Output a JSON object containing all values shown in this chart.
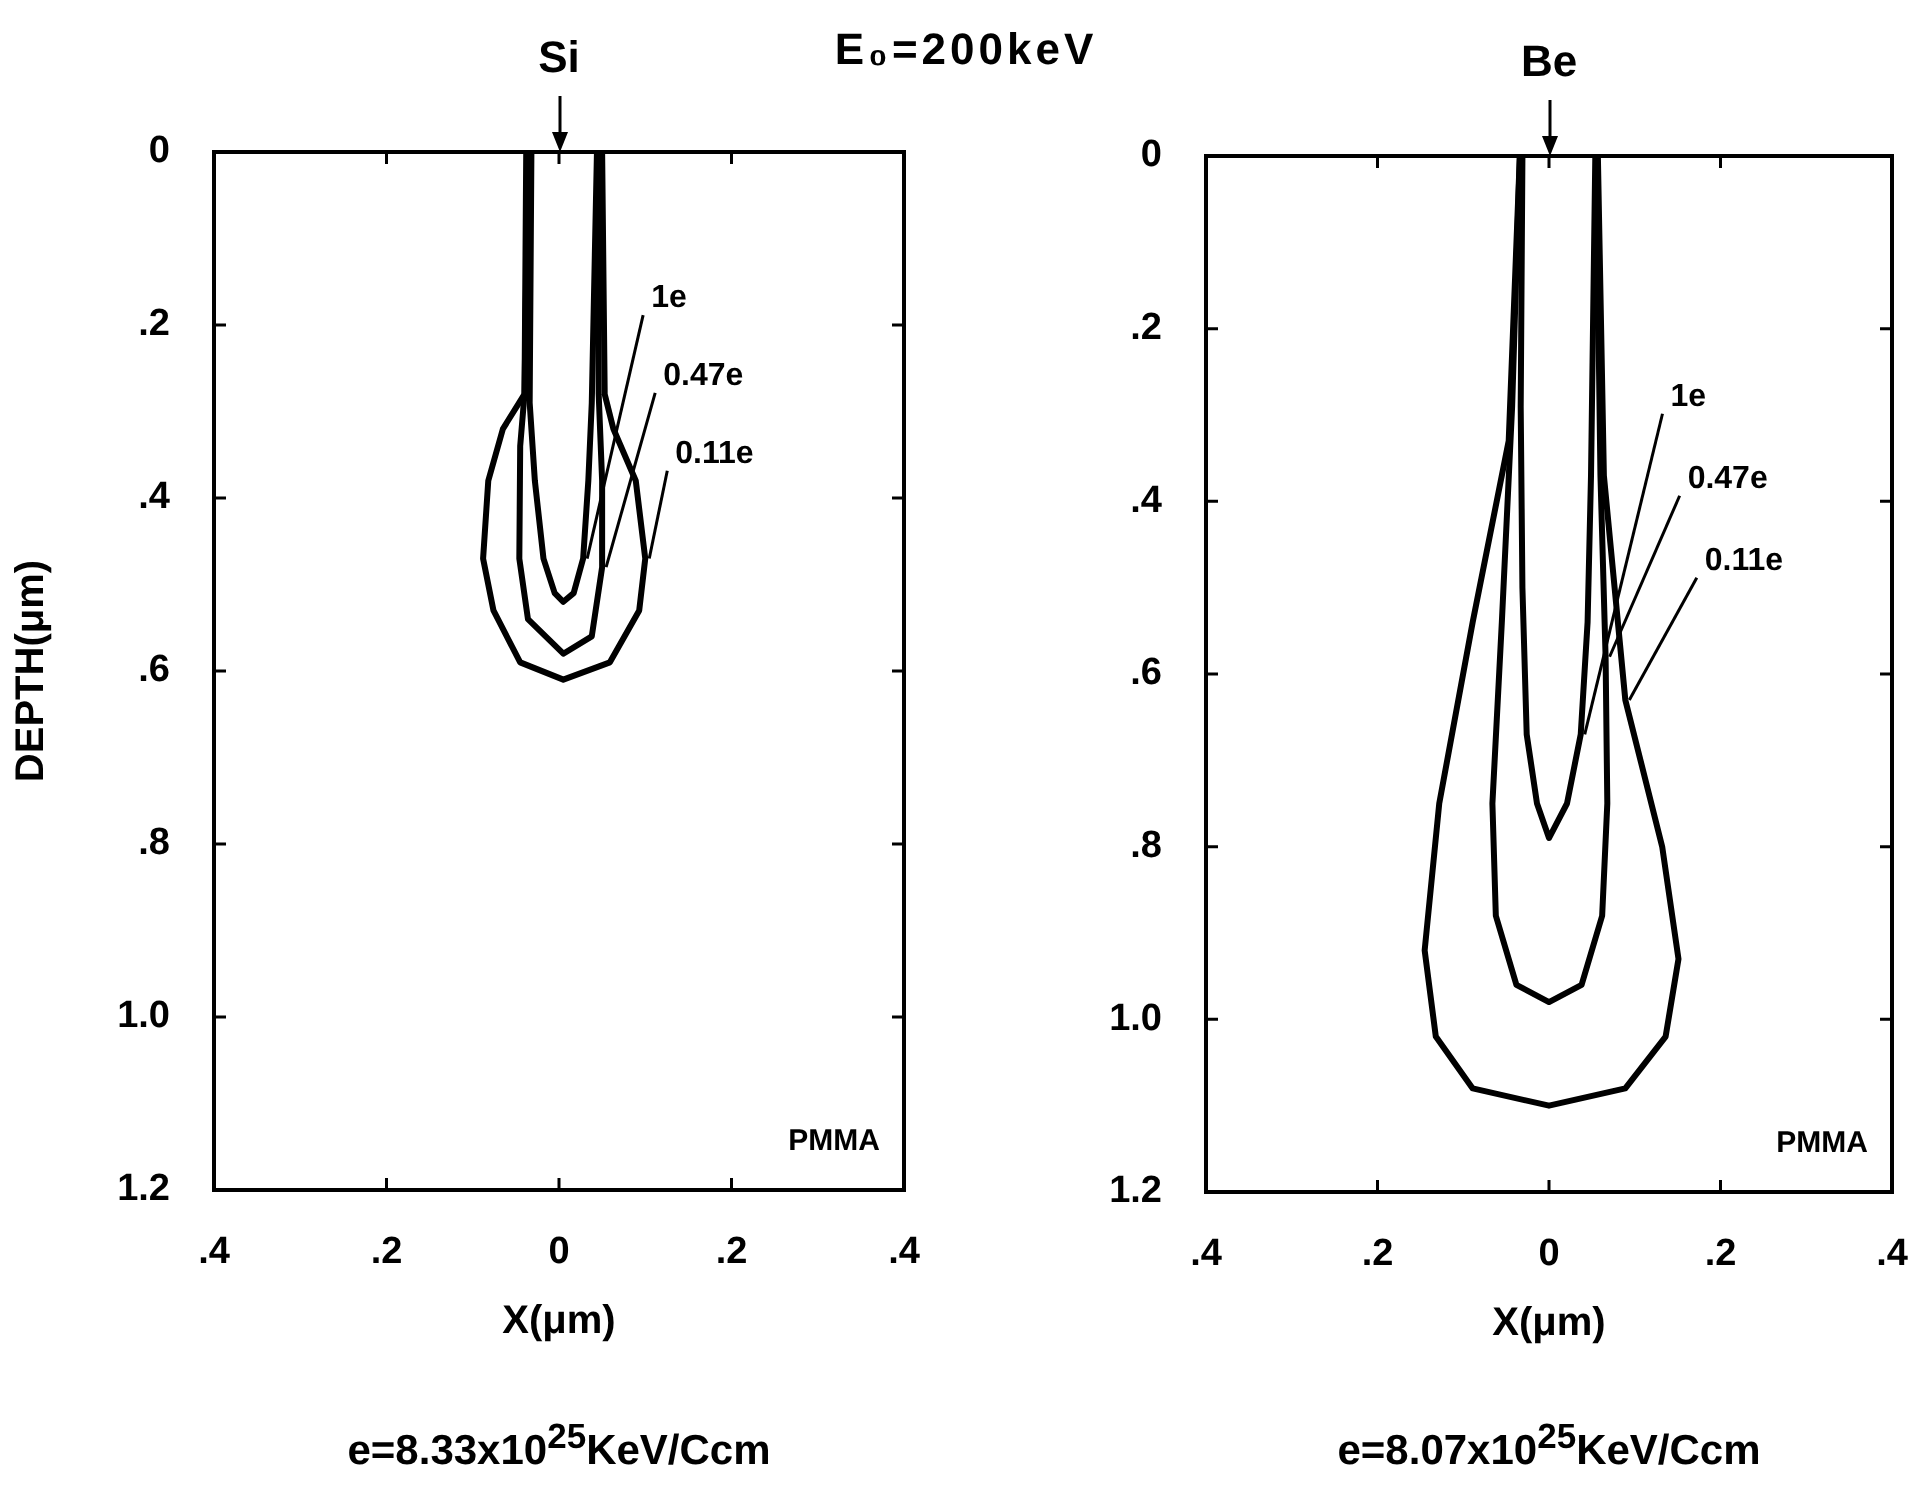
{
  "chart_data": [
    {
      "type": "line",
      "title": "Si",
      "subtitle": "E₀=200keV",
      "xlabel": "X(μm)",
      "ylabel": "DEPTH(μm)",
      "annotations": [
        "PMMA",
        "e=8.33x10$^{25}$KeV/Ccm"
      ],
      "legend": false,
      "grid": false,
      "xlim": [
        -0.4,
        0.4
      ],
      "ylim": [
        1.2,
        0
      ],
      "xticks": [
        {
          "value": -0.4,
          "label": ".4"
        },
        {
          "value": -0.2,
          "label": ".2"
        },
        0,
        {
          "value": 0.2,
          "label": ".2"
        },
        {
          "value": 0.4,
          "label": ".4"
        }
      ],
      "yticks": [
        0,
        {
          "value": 0.2,
          "label": ".2"
        },
        {
          "value": 0.4,
          "label": ".4"
        },
        {
          "value": 0.6,
          "label": ".6"
        },
        {
          "value": 0.8,
          "label": ".8"
        },
        {
          "value": 1.0,
          "label": "1.0"
        },
        {
          "value": 1.2,
          "label": "1.2"
        }
      ],
      "series": [
        {
          "name": "1e",
          "color": "#000000",
          "x": [
            -0.032,
            -0.034,
            -0.028,
            -0.018,
            -0.005,
            0.005,
            0.017,
            0.028,
            0.034,
            0.038,
            0.044
          ],
          "values": [
            0,
            0.29,
            0.38,
            0.47,
            0.51,
            0.52,
            0.51,
            0.47,
            0.38,
            0.29,
            0
          ]
        },
        {
          "name": "0.47e",
          "color": "#000000",
          "x": [
            -0.036,
            -0.04,
            -0.045,
            -0.046,
            -0.036,
            0.005,
            0.038,
            0.05,
            0.05,
            0.046,
            0.045
          ],
          "values": [
            0,
            0.28,
            0.34,
            0.47,
            0.54,
            0.58,
            0.56,
            0.48,
            0.38,
            0.28,
            0
          ]
        },
        {
          "name": "0.11e",
          "color": "#000000",
          "x": [
            -0.038,
            -0.04,
            -0.065,
            -0.082,
            -0.088,
            -0.076,
            -0.045,
            0.005,
            0.059,
            0.093,
            0.1,
            0.089,
            0.063,
            0.053,
            0.05
          ],
          "values": [
            0,
            0.28,
            0.32,
            0.38,
            0.47,
            0.53,
            0.59,
            0.61,
            0.59,
            0.53,
            0.47,
            0.38,
            0.32,
            0.28,
            0
          ]
        }
      ]
    },
    {
      "type": "line",
      "title": "Be",
      "xlabel": "X(μm)",
      "annotations": [
        "PMMA",
        "e=8.07x10$^{25}$KeV/Ccm"
      ],
      "legend": false,
      "grid": false,
      "xlim": [
        -0.4,
        0.4
      ],
      "ylim": [
        1.2,
        0
      ],
      "xticks": [
        {
          "value": -0.4,
          "label": ".4"
        },
        {
          "value": -0.2,
          "label": ".2"
        },
        0,
        {
          "value": 0.2,
          "label": ".2"
        },
        {
          "value": 0.4,
          "label": ".4"
        }
      ],
      "yticks": [
        0,
        {
          "value": 0.2,
          "label": ".2"
        },
        {
          "value": 0.4,
          "label": ".4"
        },
        {
          "value": 0.6,
          "label": ".6"
        },
        {
          "value": 0.8,
          "label": ".8"
        },
        {
          "value": 1.0,
          "label": "1.0"
        },
        {
          "value": 1.2,
          "label": "1.2"
        }
      ],
      "series": [
        {
          "name": "1e",
          "color": "#000000",
          "x": [
            -0.031,
            -0.033,
            -0.031,
            -0.026,
            -0.014,
            0,
            0.021,
            0.037,
            0.045,
            0.049,
            0.054
          ],
          "values": [
            0,
            0.29,
            0.5,
            0.67,
            0.75,
            0.79,
            0.75,
            0.67,
            0.54,
            0.37,
            0
          ]
        },
        {
          "name": "0.47e",
          "color": "#000000",
          "x": [
            -0.034,
            -0.043,
            -0.055,
            -0.066,
            -0.062,
            -0.038,
            0,
            0.038,
            0.062,
            0.068,
            0.066,
            0.06,
            0.055
          ],
          "values": [
            0,
            0.29,
            0.54,
            0.75,
            0.88,
            0.96,
            0.98,
            0.96,
            0.88,
            0.75,
            0.58,
            0.37,
            0
          ]
        },
        {
          "name": "0.11e",
          "color": "#000000",
          "x": [
            -0.034,
            -0.047,
            -0.089,
            -0.128,
            -0.145,
            -0.132,
            -0.089,
            0,
            0.089,
            0.136,
            0.151,
            0.132,
            0.089,
            0.064,
            0.057
          ],
          "values": [
            0,
            0.33,
            0.54,
            0.75,
            0.92,
            1.02,
            1.08,
            1.1,
            1.08,
            1.02,
            0.93,
            0.8,
            0.63,
            0.37,
            0
          ]
        }
      ]
    }
  ]
}
